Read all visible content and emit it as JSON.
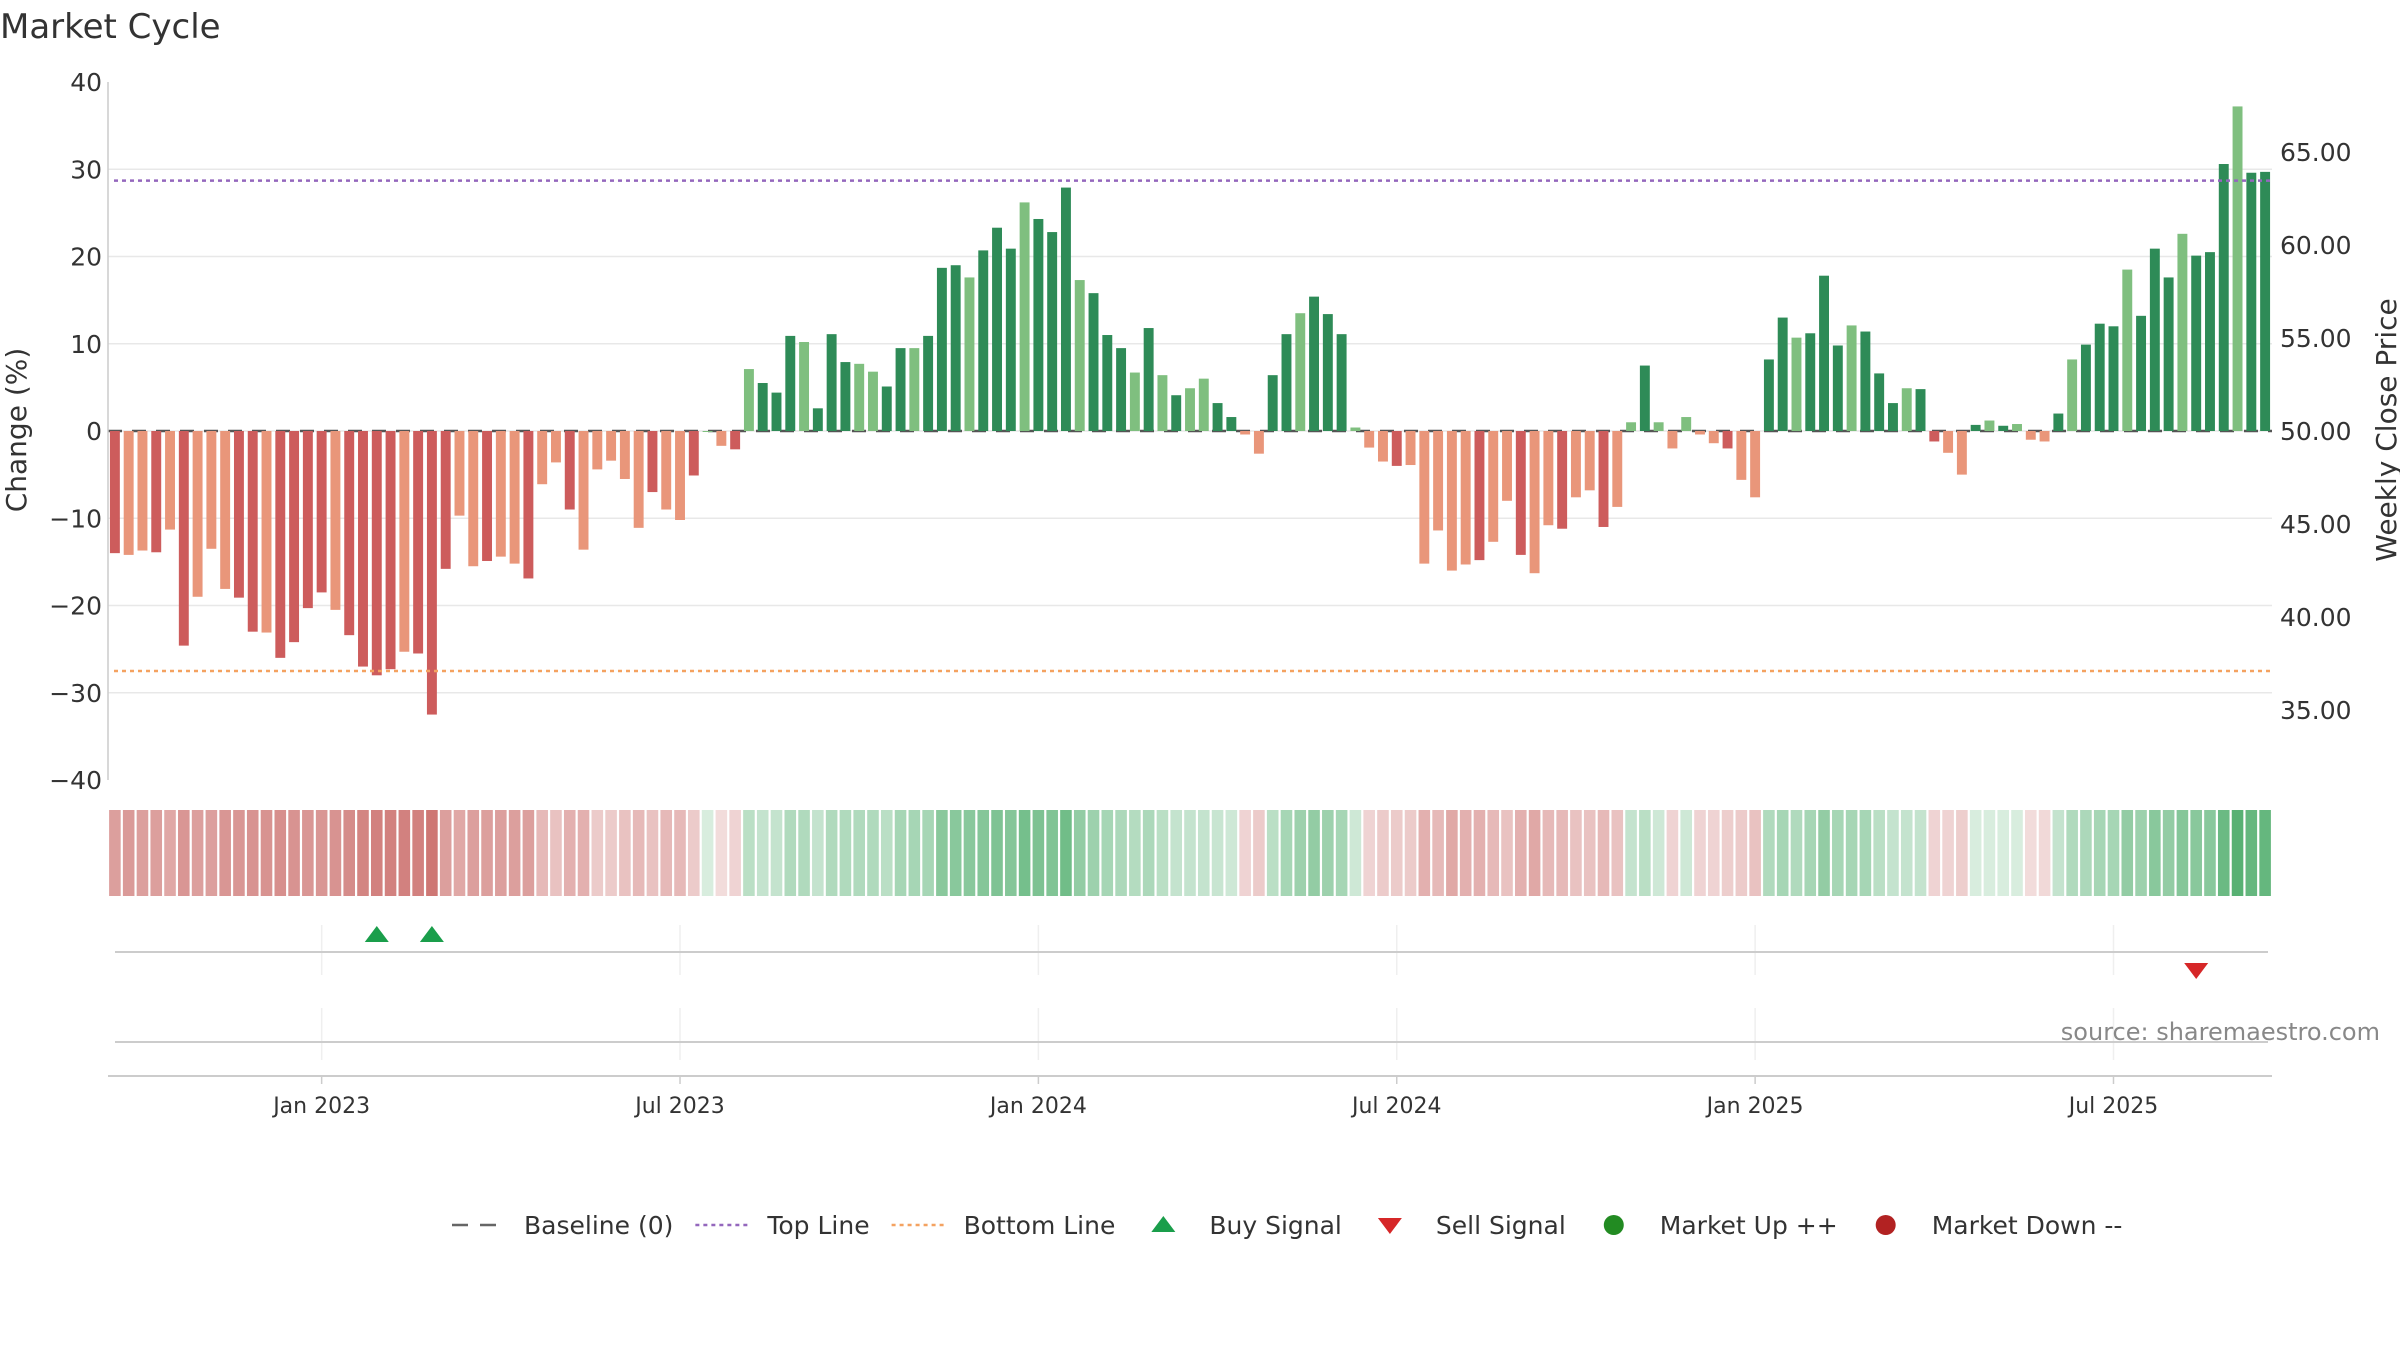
{
  "chart_data": {
    "type": "bar",
    "title": "Market Cycle",
    "ylabel_left": "Change (%)",
    "ylabel_right": "Weekly Close Price",
    "ylim_left": [
      -40,
      40
    ],
    "ylim_right": [
      31.25,
      68.75
    ],
    "yticks_left": [
      "40",
      "30",
      "20",
      "10",
      "0",
      "−10",
      "−20",
      "−30",
      "−40"
    ],
    "yticks_left_values": [
      40,
      30,
      20,
      10,
      0,
      -10,
      -20,
      -30,
      -40
    ],
    "yticks_right": [
      "65.00",
      "60.00",
      "55.00",
      "50.00",
      "45.00",
      "40.00",
      "35.00"
    ],
    "yticks_right_values": [
      65,
      60,
      55,
      50,
      45,
      40,
      35
    ],
    "top_line": 28.7,
    "bottom_line": -27.5,
    "xticks": [
      {
        "label": "Jan 2023",
        "index": 15
      },
      {
        "label": "Jul 2023",
        "index": 41
      },
      {
        "label": "Jan 2024",
        "index": 67
      },
      {
        "label": "Jul 2024",
        "index": 93
      },
      {
        "label": "Jan 2025",
        "index": 119
      },
      {
        "label": "Jul 2025",
        "index": 145
      }
    ],
    "values": [
      -14,
      -14.2,
      -13.7,
      -13.9,
      -11.3,
      -24.6,
      -19,
      -13.5,
      -18.1,
      -19.1,
      -23,
      -23.1,
      -26,
      -24.2,
      -20.3,
      -18.5,
      -20.5,
      -23.4,
      -27,
      -28,
      -27.3,
      -25.3,
      -25.5,
      -32.5,
      -15.8,
      -9.7,
      -15.5,
      -14.9,
      -14.4,
      -15.2,
      -16.9,
      -6.1,
      -3.6,
      -9,
      -13.6,
      -4.4,
      -3.4,
      -5.5,
      -11.1,
      -7,
      -9,
      -10.2,
      -5.1,
      0,
      -1.7,
      -2.1,
      7.1,
      5.5,
      4.4,
      10.9,
      10.2,
      2.6,
      11.1,
      7.9,
      7.7,
      6.8,
      5.1,
      9.5,
      9.5,
      10.9,
      18.7,
      19,
      17.6,
      20.7,
      23.3,
      20.9,
      26.2,
      24.3,
      22.8,
      27.9,
      17.3,
      15.8,
      11,
      9.5,
      6.7,
      11.8,
      6.4,
      4.1,
      4.9,
      6,
      3.2,
      1.6,
      -0.4,
      -2.6,
      6.4,
      11.1,
      13.5,
      15.4,
      13.4,
      11.1,
      0.4,
      -1.9,
      -3.5,
      -4,
      -3.9,
      -15.2,
      -11.4,
      -16,
      -15.3,
      -14.8,
      -12.7,
      -8,
      -14.2,
      -16.3,
      -10.8,
      -11.2,
      -7.6,
      -6.8,
      -11,
      -8.7,
      1,
      7.5,
      1,
      -2,
      1.6,
      -0.4,
      -1.4,
      -2,
      -5.6,
      -7.6,
      8.2,
      13,
      10.7,
      11.2,
      17.8,
      9.8,
      12.1,
      11.4,
      6.6,
      3.2,
      4.9,
      4.8,
      -1.2,
      -2.5,
      -5,
      0.7,
      1.2,
      0.6,
      0.8,
      -1,
      -1.2,
      2,
      8.2,
      9.9,
      12.3,
      12,
      18.5,
      13.2,
      20.9,
      17.6,
      22.6,
      20.1,
      20.5,
      30.6,
      37.2,
      29.6,
      29.7
    ],
    "heat_strength": [
      0.55,
      0.58,
      0.55,
      0.55,
      0.5,
      0.6,
      0.55,
      0.55,
      0.6,
      0.6,
      0.62,
      0.62,
      0.64,
      0.62,
      0.6,
      0.6,
      0.62,
      0.66,
      0.7,
      0.72,
      0.72,
      0.72,
      0.72,
      0.78,
      0.55,
      0.5,
      0.55,
      0.55,
      0.55,
      0.55,
      0.55,
      0.4,
      0.35,
      0.45,
      0.45,
      0.3,
      0.3,
      0.35,
      0.4,
      0.35,
      0.4,
      0.4,
      0.3,
      0.2,
      0.2,
      0.25,
      0.35,
      0.3,
      0.3,
      0.4,
      0.4,
      0.3,
      0.4,
      0.4,
      0.4,
      0.4,
      0.35,
      0.45,
      0.45,
      0.45,
      0.6,
      0.6,
      0.6,
      0.62,
      0.65,
      0.62,
      0.7,
      0.66,
      0.64,
      0.72,
      0.55,
      0.5,
      0.45,
      0.42,
      0.38,
      0.42,
      0.35,
      0.3,
      0.3,
      0.3,
      0.28,
      0.25,
      0.25,
      0.3,
      0.35,
      0.45,
      0.5,
      0.55,
      0.5,
      0.45,
      0.25,
      0.25,
      0.3,
      0.3,
      0.3,
      0.45,
      0.4,
      0.5,
      0.45,
      0.45,
      0.4,
      0.35,
      0.45,
      0.5,
      0.4,
      0.4,
      0.35,
      0.35,
      0.4,
      0.35,
      0.3,
      0.35,
      0.25,
      0.25,
      0.25,
      0.25,
      0.25,
      0.28,
      0.3,
      0.35,
      0.4,
      0.45,
      0.4,
      0.45,
      0.55,
      0.45,
      0.45,
      0.45,
      0.35,
      0.3,
      0.3,
      0.3,
      0.25,
      0.25,
      0.28,
      0.2,
      0.2,
      0.2,
      0.2,
      0.2,
      0.22,
      0.3,
      0.4,
      0.42,
      0.45,
      0.45,
      0.55,
      0.5,
      0.6,
      0.55,
      0.62,
      0.6,
      0.6,
      0.75,
      0.85,
      0.78,
      0.78
    ],
    "buy_signals": [
      19,
      23
    ],
    "sell_signals": [
      151
    ],
    "legend": [
      {
        "label": "Baseline (0)",
        "marker": "dash"
      },
      {
        "label": "Top Line",
        "marker": "dot-purple"
      },
      {
        "label": "Bottom Line",
        "marker": "dot-orange"
      },
      {
        "label": "Buy Signal",
        "marker": "triangle-up"
      },
      {
        "label": "Sell Signal",
        "marker": "triangle-down"
      },
      {
        "label": "Market Up ++",
        "marker": "circle-green"
      },
      {
        "label": "Market Down --",
        "marker": "circle-red"
      }
    ],
    "source": "source: sharemaestro.com",
    "colors": {
      "bar_up_strong": "#2e8b57",
      "bar_up_light": "#7fbf7f",
      "bar_down_strong": "#cd5c5c",
      "bar_down_light": "#e9967a",
      "top_line": "#9467bd",
      "bottom_line": "#f4a261",
      "buy": "#1a9e4b",
      "sell": "#d62728",
      "market_up": "#228b22",
      "market_down": "#b22222"
    }
  }
}
